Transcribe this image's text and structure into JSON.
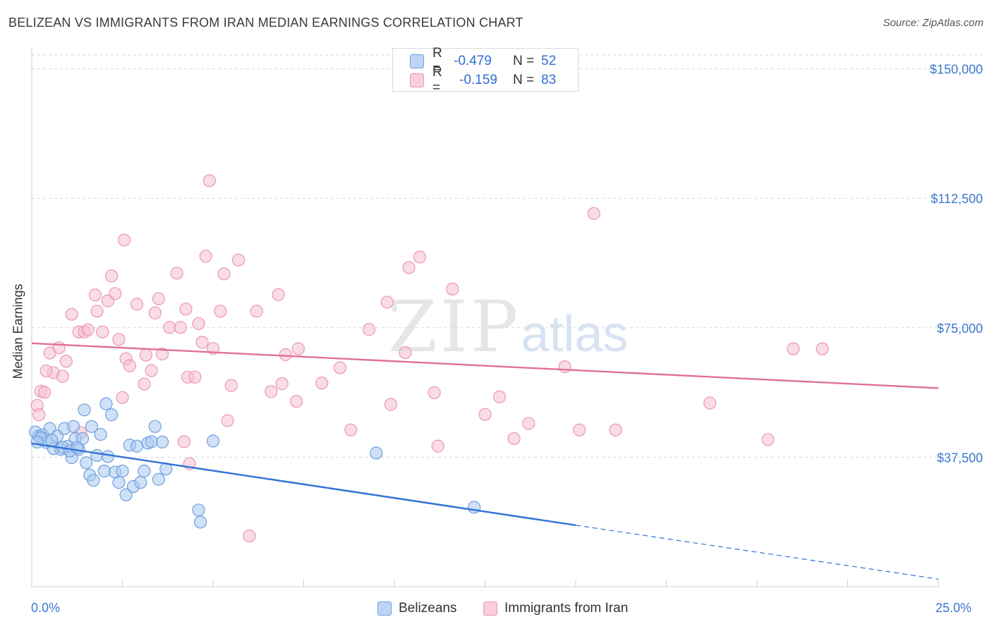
{
  "header": {
    "title": "BELIZEAN VS IMMIGRANTS FROM IRAN MEDIAN EARNINGS CORRELATION CHART",
    "source": "Source: ZipAtlas.com"
  },
  "watermark": {
    "zip": "ZIP",
    "atlas": "atlas"
  },
  "legend_top": {
    "rows": [
      {
        "r_label": "R =",
        "r_value": "-0.479",
        "n_label": "N =",
        "n_value": "52"
      },
      {
        "r_label": "R =",
        "r_value": "-0.159",
        "n_label": "N =",
        "n_value": "83"
      }
    ]
  },
  "colors": {
    "blue_fill": "#a9c8f0",
    "blue_stroke": "#6f9fe0",
    "blue_line": "#2f72d6",
    "pink_fill": "#f5bfd0",
    "pink_stroke": "#ea97b3",
    "pink_line": "#e0709a",
    "axis_text": "#3c78d0",
    "grid": "#d7d7d7"
  },
  "chart_data": {
    "type": "scatter",
    "title": "BELIZEAN VS IMMIGRANTS FROM IRAN MEDIAN EARNINGS CORRELATION CHART",
    "xlabel": "",
    "ylabel": "Median Earnings",
    "x_tick_labels": [
      "0.0%",
      "25.0%"
    ],
    "y_tick_labels": [
      "$37,500",
      "$75,000",
      "$112,500",
      "$150,000"
    ],
    "y_ticks": [
      37500,
      75000,
      112500,
      150000
    ],
    "xlim": [
      0,
      25
    ],
    "ylim": [
      0,
      154000
    ],
    "grid": true,
    "legend": "bottom-center",
    "series": [
      {
        "name": "Belizeans",
        "color": "blue",
        "r": -0.479,
        "n": 52,
        "trend": {
          "x0": 0.0,
          "y0": 41500,
          "x1": 15.0,
          "y1": 17800,
          "dashed_to_x": 25.0,
          "dashed_to_y": 2200
        },
        "points": [
          [
            0.1,
            44800
          ],
          [
            0.2,
            43600
          ],
          [
            0.3,
            44000
          ],
          [
            0.4,
            41800
          ],
          [
            0.5,
            45800
          ],
          [
            0.6,
            40000
          ],
          [
            0.7,
            43600
          ],
          [
            0.8,
            39800
          ],
          [
            0.9,
            45800
          ],
          [
            1.0,
            40700
          ],
          [
            1.1,
            37400
          ],
          [
            1.2,
            42900
          ],
          [
            1.3,
            39800
          ],
          [
            1.4,
            42900
          ],
          [
            1.5,
            35900
          ],
          [
            1.6,
            32300
          ],
          [
            1.7,
            30800
          ],
          [
            1.8,
            38000
          ],
          [
            1.9,
            44100
          ],
          [
            2.0,
            33500
          ],
          [
            2.1,
            37700
          ],
          [
            2.2,
            49800
          ],
          [
            2.3,
            33200
          ],
          [
            2.4,
            30200
          ],
          [
            2.5,
            33500
          ],
          [
            2.6,
            26600
          ],
          [
            2.7,
            41000
          ],
          [
            2.8,
            29000
          ],
          [
            2.9,
            40700
          ],
          [
            3.0,
            30200
          ],
          [
            3.1,
            33500
          ],
          [
            3.2,
            41600
          ],
          [
            3.3,
            42000
          ],
          [
            3.4,
            46400
          ],
          [
            3.5,
            31100
          ],
          [
            3.6,
            41900
          ],
          [
            3.7,
            34100
          ],
          [
            0.25,
            43100
          ],
          [
            0.55,
            42400
          ],
          [
            0.85,
            40400
          ],
          [
            1.05,
            39300
          ],
          [
            1.25,
            40300
          ],
          [
            1.45,
            51200
          ],
          [
            1.65,
            46400
          ],
          [
            2.05,
            53000
          ],
          [
            4.6,
            22200
          ],
          [
            4.65,
            18700
          ],
          [
            5.0,
            42200
          ],
          [
            9.5,
            38700
          ],
          [
            12.2,
            23000
          ],
          [
            0.15,
            41900
          ],
          [
            1.15,
            46400
          ]
        ]
      },
      {
        "name": "Immigrants from Iran",
        "color": "pink",
        "r": -0.159,
        "n": 83,
        "trend": {
          "x0": 0.0,
          "y0": 70500,
          "x1": 25.0,
          "y1": 57500
        },
        "points": [
          [
            0.15,
            52500
          ],
          [
            0.2,
            49800
          ],
          [
            0.25,
            56600
          ],
          [
            0.35,
            56300
          ],
          [
            0.5,
            67700
          ],
          [
            0.6,
            62000
          ],
          [
            0.75,
            69200
          ],
          [
            0.85,
            60900
          ],
          [
            0.95,
            65300
          ],
          [
            1.1,
            78900
          ],
          [
            1.3,
            73800
          ],
          [
            1.45,
            73800
          ],
          [
            1.55,
            74400
          ],
          [
            1.75,
            84500
          ],
          [
            1.8,
            79800
          ],
          [
            1.95,
            73800
          ],
          [
            2.1,
            82800
          ],
          [
            2.2,
            90000
          ],
          [
            2.3,
            84900
          ],
          [
            2.4,
            71600
          ],
          [
            2.5,
            54800
          ],
          [
            2.55,
            100400
          ],
          [
            2.6,
            66000
          ],
          [
            2.7,
            64000
          ],
          [
            2.9,
            81800
          ],
          [
            3.1,
            58700
          ],
          [
            3.15,
            67100
          ],
          [
            3.3,
            62600
          ],
          [
            3.4,
            79300
          ],
          [
            3.5,
            83400
          ],
          [
            3.6,
            67400
          ],
          [
            3.8,
            75100
          ],
          [
            4.0,
            90800
          ],
          [
            4.1,
            75100
          ],
          [
            4.25,
            80400
          ],
          [
            4.3,
            60700
          ],
          [
            4.35,
            35600
          ],
          [
            4.5,
            60700
          ],
          [
            4.6,
            76200
          ],
          [
            4.7,
            70800
          ],
          [
            4.8,
            95700
          ],
          [
            4.9,
            117600
          ],
          [
            5.0,
            69000
          ],
          [
            5.2,
            79800
          ],
          [
            5.3,
            90600
          ],
          [
            5.4,
            48100
          ],
          [
            5.5,
            58300
          ],
          [
            5.7,
            94600
          ],
          [
            6.2,
            79800
          ],
          [
            6.6,
            56500
          ],
          [
            6.8,
            84600
          ],
          [
            6.9,
            58800
          ],
          [
            7.0,
            67200
          ],
          [
            7.3,
            53700
          ],
          [
            7.35,
            68900
          ],
          [
            8.0,
            59000
          ],
          [
            8.5,
            63400
          ],
          [
            8.8,
            45400
          ],
          [
            9.3,
            74500
          ],
          [
            9.8,
            82400
          ],
          [
            9.9,
            52800
          ],
          [
            10.4,
            92400
          ],
          [
            10.7,
            95500
          ],
          [
            10.3,
            67800
          ],
          [
            11.2,
            40700
          ],
          [
            11.6,
            86200
          ],
          [
            12.5,
            49900
          ],
          [
            12.9,
            55000
          ],
          [
            13.3,
            42900
          ],
          [
            13.7,
            47300
          ],
          [
            14.7,
            63700
          ],
          [
            15.1,
            45400
          ],
          [
            15.5,
            108100
          ],
          [
            16.1,
            45400
          ],
          [
            18.7,
            53200
          ],
          [
            20.3,
            42600
          ],
          [
            21.0,
            68900
          ],
          [
            21.8,
            68900
          ],
          [
            11.1,
            56200
          ],
          [
            4.2,
            42000
          ],
          [
            0.4,
            62500
          ],
          [
            1.35,
            44600
          ],
          [
            6.0,
            14700
          ]
        ]
      }
    ]
  }
}
